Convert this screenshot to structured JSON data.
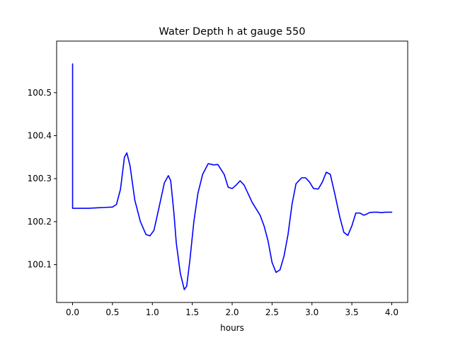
{
  "chart_data": {
    "type": "line",
    "title": "Water Depth h at gauge 550",
    "xlabel": "hours",
    "ylabel": "",
    "xlim": [
      -0.2,
      4.2
    ],
    "ylim": [
      100.012,
      100.62
    ],
    "xticks": [
      0.0,
      0.5,
      1.0,
      1.5,
      2.0,
      2.5,
      3.0,
      3.5,
      4.0
    ],
    "xtick_labels": [
      "0.0",
      "0.5",
      "1.0",
      "1.5",
      "2.0",
      "2.5",
      "3.0",
      "3.5",
      "4.0"
    ],
    "yticks": [
      100.1,
      100.2,
      100.3,
      100.4,
      100.5
    ],
    "ytick_labels": [
      "100.1",
      "100.2",
      "100.3",
      "100.4",
      "100.5"
    ],
    "grid": false,
    "series": [
      {
        "color": "#0000ff",
        "x": [
          0.0,
          0.0,
          0.0,
          0.1,
          0.2,
          0.3,
          0.4,
          0.5,
          0.55,
          0.6,
          0.65,
          0.68,
          0.72,
          0.78,
          0.85,
          0.92,
          0.97,
          1.02,
          1.08,
          1.15,
          1.2,
          1.23,
          1.27,
          1.3,
          1.35,
          1.4,
          1.43,
          1.47,
          1.52,
          1.57,
          1.63,
          1.7,
          1.77,
          1.82,
          1.9,
          1.95,
          2.0,
          2.05,
          2.1,
          2.15,
          2.2,
          2.25,
          2.3,
          2.35,
          2.4,
          2.45,
          2.5,
          2.55,
          2.6,
          2.65,
          2.7,
          2.75,
          2.8,
          2.87,
          2.92,
          2.97,
          3.02,
          3.08,
          3.13,
          3.18,
          3.23,
          3.28,
          3.35,
          3.4,
          3.45,
          3.5,
          3.55,
          3.6,
          3.65,
          3.68,
          3.72,
          3.77,
          3.82,
          3.87,
          3.92,
          3.97,
          4.0
        ],
        "y": [
          100.567,
          100.233,
          100.231,
          100.231,
          100.231,
          100.232,
          100.233,
          100.234,
          100.24,
          100.275,
          100.35,
          100.36,
          100.33,
          100.25,
          100.2,
          100.17,
          100.167,
          100.18,
          100.23,
          100.29,
          100.307,
          100.295,
          100.22,
          100.15,
          100.08,
          100.042,
          100.05,
          100.11,
          100.2,
          100.265,
          100.31,
          100.335,
          100.332,
          100.333,
          100.31,
          100.28,
          100.277,
          100.285,
          100.295,
          100.285,
          100.265,
          100.245,
          100.23,
          100.215,
          100.19,
          100.155,
          100.105,
          100.082,
          100.088,
          100.12,
          100.17,
          100.24,
          100.288,
          100.302,
          100.302,
          100.292,
          100.277,
          100.276,
          100.292,
          100.315,
          100.31,
          100.27,
          100.21,
          100.175,
          100.168,
          100.19,
          100.22,
          100.22,
          100.215,
          100.217,
          100.221,
          100.222,
          100.222,
          100.221,
          100.222,
          100.222,
          100.222
        ]
      }
    ]
  }
}
